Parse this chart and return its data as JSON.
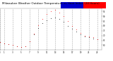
{
  "title": "Milwaukee Weather Outdoor Temperature vs Heat Index (24 Hours)",
  "title_fontsize": 3.0,
  "background_color": "#ffffff",
  "plot_bg_color": "#ffffff",
  "grid_color": "#aaaaaa",
  "colorbar_blue": "#0000cc",
  "colorbar_red": "#ff0000",
  "temp_color": "#000000",
  "heat_color": "#ff0000",
  "xlim": [
    0,
    24
  ],
  "ylim": [
    55,
    98
  ],
  "ytick_vals": [
    60,
    65,
    70,
    75,
    80,
    85,
    90,
    95
  ],
  "xtick_vals": [
    0,
    1,
    3,
    5,
    7,
    9,
    11,
    13,
    15,
    17,
    19,
    21,
    23
  ],
  "temp_x": [
    0,
    1,
    2,
    3,
    4,
    5,
    6,
    7,
    8,
    9,
    10,
    11,
    12,
    13,
    14,
    15,
    16,
    17,
    18,
    19,
    20,
    21,
    22,
    23
  ],
  "temp_y": [
    63,
    62,
    61,
    60,
    59,
    58,
    59,
    64,
    71,
    78,
    83,
    86,
    88,
    89,
    87,
    84,
    80,
    77,
    74,
    71,
    69,
    68,
    67,
    66
  ],
  "heat_y": [
    63,
    62,
    61,
    60,
    59,
    58,
    59,
    64,
    72,
    81,
    87,
    92,
    95,
    97,
    94,
    90,
    85,
    80,
    76,
    73,
    70,
    69,
    68,
    66
  ]
}
